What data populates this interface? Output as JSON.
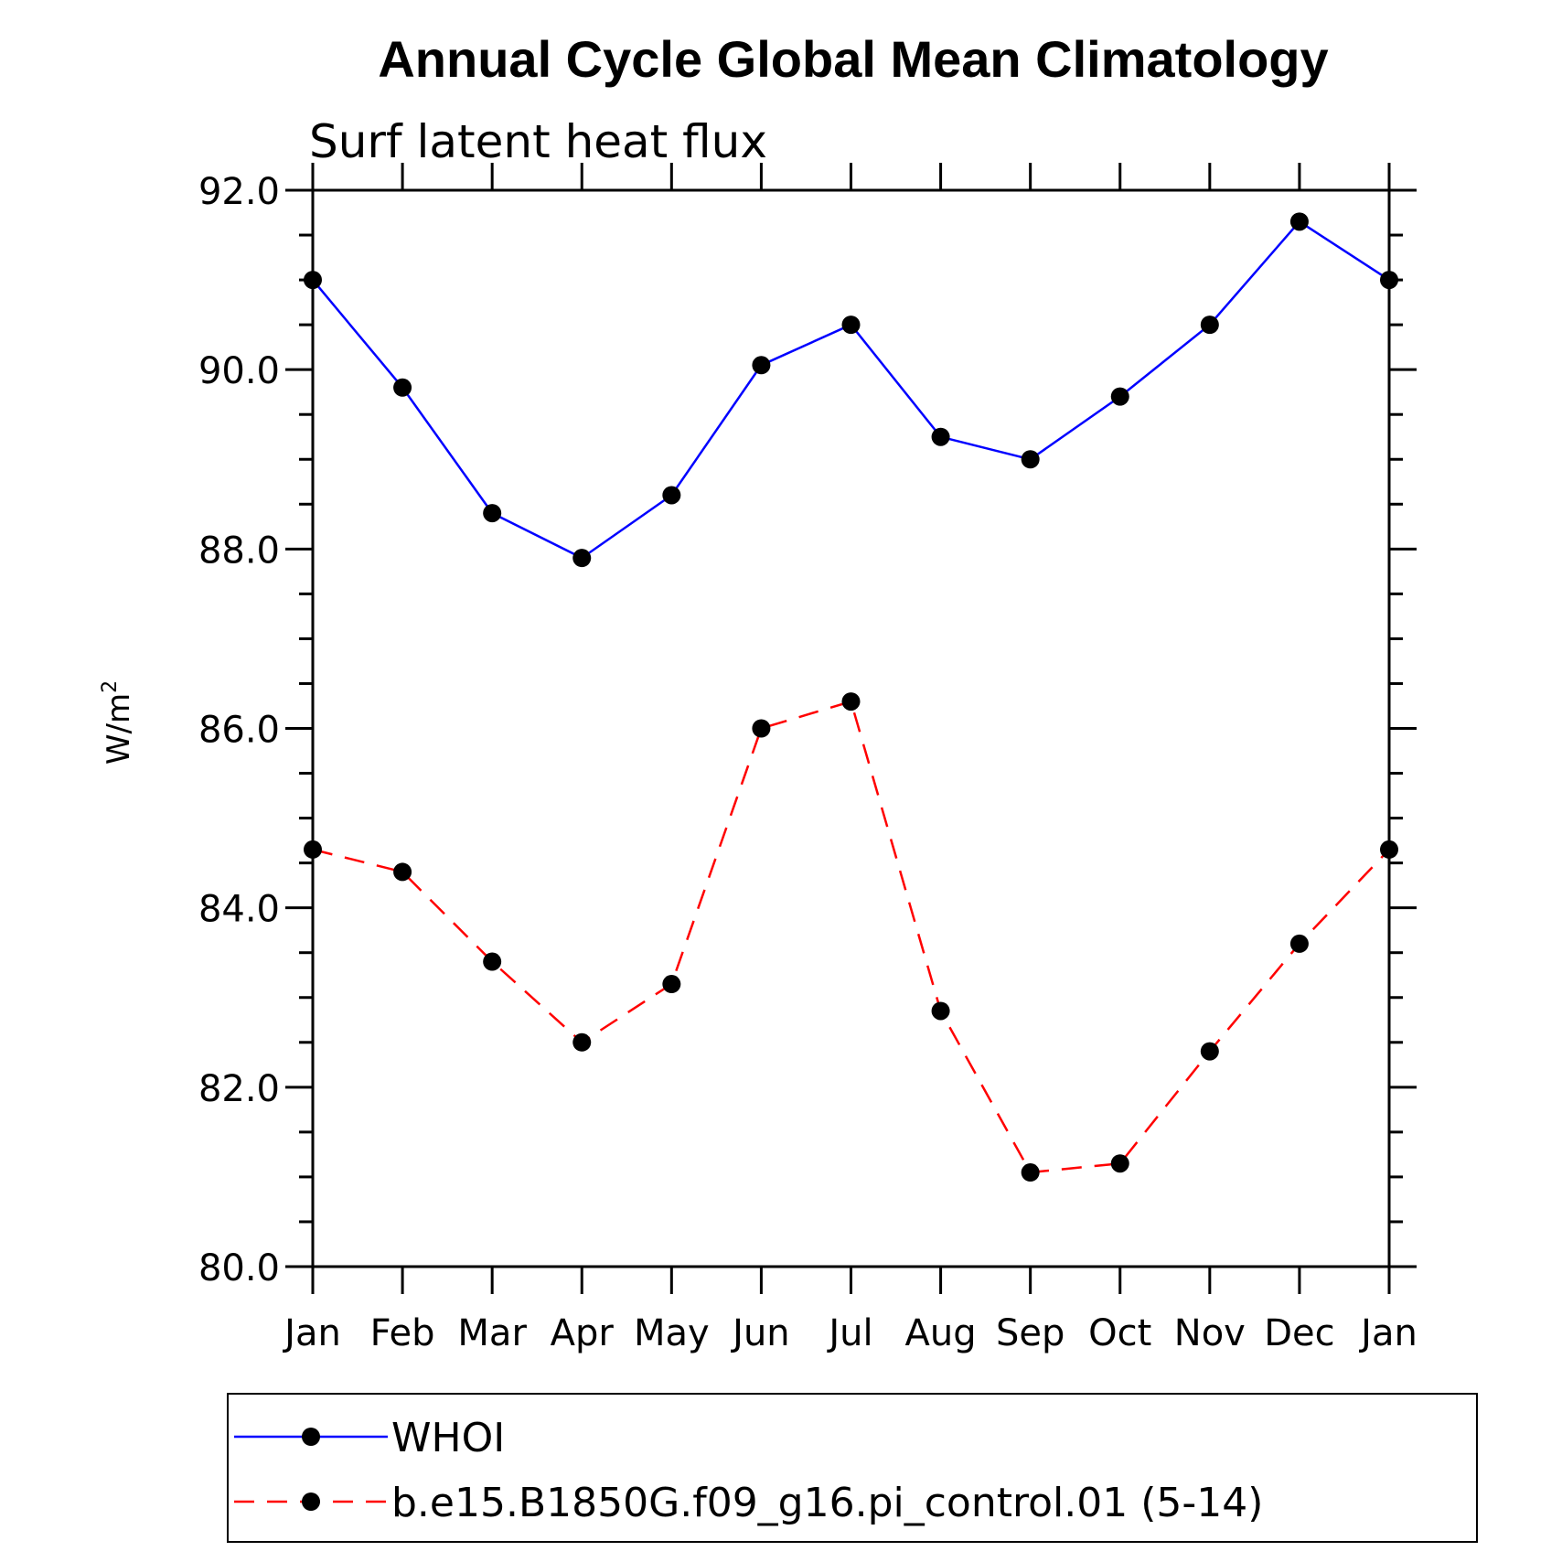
{
  "chart_data": {
    "type": "line",
    "title": "Annual Cycle Global Mean Climatology",
    "subtitle": "Surf latent heat flux",
    "ylabel": "W/m",
    "ylabel_superscript": "2",
    "xlabel": "",
    "ylim": [
      80.0,
      92.0
    ],
    "yticks": [
      "80.0",
      "82.0",
      "84.0",
      "86.0",
      "88.0",
      "90.0",
      "92.0"
    ],
    "categories": [
      "Jan",
      "Feb",
      "Mar",
      "Apr",
      "May",
      "Jun",
      "Jul",
      "Aug",
      "Sep",
      "Oct",
      "Nov",
      "Dec",
      "Jan"
    ],
    "series": [
      {
        "name": "WHOI",
        "color": "#0000ff",
        "style": "solid",
        "marker": "circle",
        "values": [
          91.0,
          89.8,
          88.4,
          87.9,
          88.6,
          90.05,
          90.5,
          89.25,
          89.0,
          89.7,
          90.5,
          91.65,
          91.0
        ]
      },
      {
        "name": "b.e15.B1850G.f09_g16.pi_control.01 (5-14)",
        "color": "#ff0000",
        "style": "dashed",
        "marker": "circle",
        "values": [
          84.65,
          84.4,
          83.4,
          82.5,
          83.15,
          86.0,
          86.3,
          82.85,
          81.05,
          81.15,
          82.4,
          83.6,
          84.65
        ]
      }
    ],
    "legend_position": "bottom",
    "grid": false
  }
}
